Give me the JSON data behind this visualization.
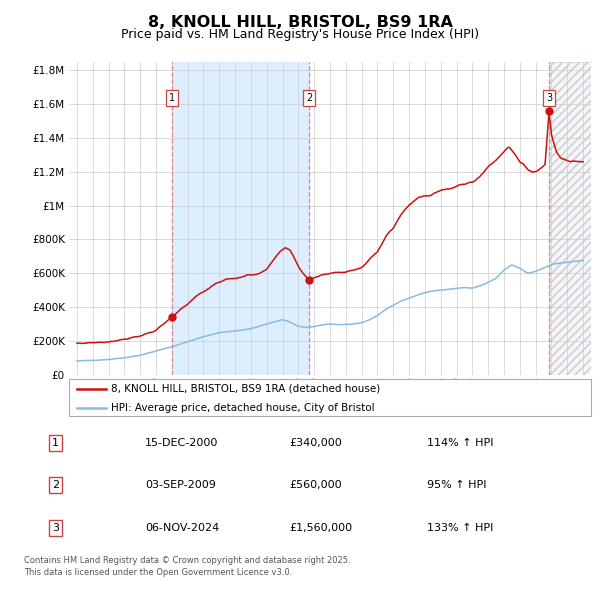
{
  "title": "8, KNOLL HILL, BRISTOL, BS9 1RA",
  "subtitle": "Price paid vs. HM Land Registry's House Price Index (HPI)",
  "legend_line1": "8, KNOLL HILL, BRISTOL, BS9 1RA (detached house)",
  "legend_line2": "HPI: Average price, detached house, City of Bristol",
  "footer": "Contains HM Land Registry data © Crown copyright and database right 2025.\nThis data is licensed under the Open Government Licence v3.0.",
  "sale_labels": [
    {
      "n": 1,
      "date": "15-DEC-2000",
      "price": "£340,000",
      "hpi": "114% ↑ HPI"
    },
    {
      "n": 2,
      "date": "03-SEP-2009",
      "price": "£560,000",
      "hpi": "95% ↑ HPI"
    },
    {
      "n": 3,
      "date": "06-NOV-2024",
      "price": "£1,560,000",
      "hpi": "133% ↑ HPI"
    }
  ],
  "sale_points": [
    {
      "year": 2001.0,
      "price": 340000
    },
    {
      "year": 2009.67,
      "price": 560000
    },
    {
      "year": 2024.85,
      "price": 1560000
    }
  ],
  "vline_dates": [
    2001.0,
    2009.67,
    2024.85
  ],
  "shaded_region": [
    2001.0,
    2009.67
  ],
  "hpi_color": "#88bbdd",
  "price_color": "#cc1111",
  "shaded_color": "#ddeeff",
  "ylim": [
    0,
    1850000
  ],
  "xlim": [
    1994.5,
    2027.5
  ],
  "background_color": "#ffffff",
  "grid_color": "#cccccc",
  "title_fontsize": 12,
  "subtitle_fontsize": 9.5
}
